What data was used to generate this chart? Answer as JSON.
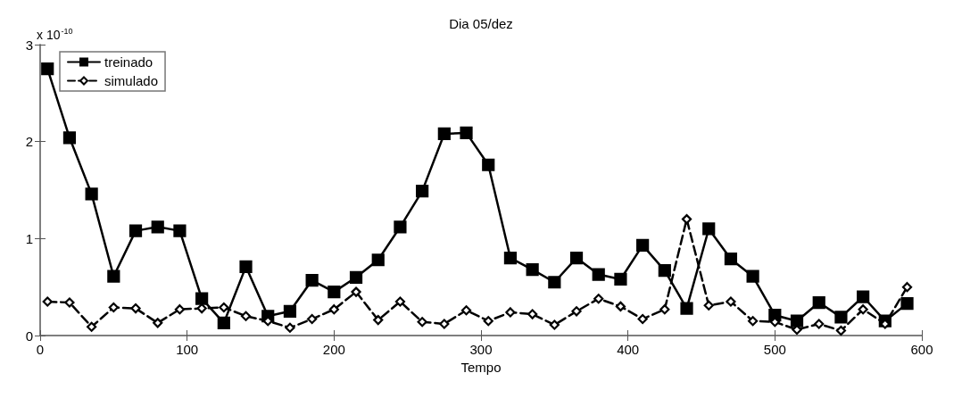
{
  "chart_data": {
    "type": "line",
    "title": "Dia 05/dez",
    "xlabel": "Tempo",
    "annotations": [
      "x 10$^{-10}$"
    ],
    "x": [
      5,
      20,
      35,
      50,
      65,
      80,
      95,
      110,
      125,
      140,
      155,
      170,
      185,
      200,
      215,
      230,
      245,
      260,
      275,
      290,
      305,
      320,
      335,
      350,
      365,
      380,
      395,
      410,
      425,
      440,
      455,
      470,
      485,
      500,
      515,
      530,
      545,
      560,
      575,
      590
    ],
    "series": [
      {
        "name": "treinado",
        "color": "#000000",
        "marker": "square",
        "line_style": "solid",
        "values": [
          2.75,
          2.04,
          1.46,
          0.61,
          1.08,
          1.12,
          1.08,
          0.38,
          0.13,
          0.71,
          0.2,
          0.25,
          0.57,
          0.45,
          0.6,
          0.78,
          1.12,
          1.49,
          2.08,
          2.09,
          1.76,
          0.8,
          0.68,
          0.55,
          0.8,
          0.63,
          0.58,
          0.93,
          0.67,
          0.28,
          1.1,
          0.79,
          0.61,
          0.21,
          0.15,
          0.34,
          0.19,
          0.4,
          0.15,
          0.33
        ]
      },
      {
        "name": "simulado",
        "color": "#000000",
        "marker": "diamond",
        "line_style": "dashed",
        "values": [
          0.35,
          0.34,
          0.09,
          0.29,
          0.28,
          0.13,
          0.27,
          0.28,
          0.29,
          0.2,
          0.15,
          0.08,
          0.17,
          0.27,
          0.45,
          0.16,
          0.35,
          0.14,
          0.12,
          0.26,
          0.15,
          0.24,
          0.22,
          0.11,
          0.25,
          0.38,
          0.3,
          0.17,
          0.27,
          1.2,
          0.31,
          0.35,
          0.15,
          0.14,
          0.06,
          0.12,
          0.05,
          0.27,
          0.12,
          0.5
        ]
      }
    ],
    "xlim": [
      0,
      600
    ],
    "xticks": [
      0,
      100,
      200,
      300,
      400,
      500,
      600
    ],
    "ylim": [
      0,
      3
    ],
    "yticks": [
      0,
      1,
      2,
      3
    ],
    "grid": false,
    "legend": "top left"
  }
}
